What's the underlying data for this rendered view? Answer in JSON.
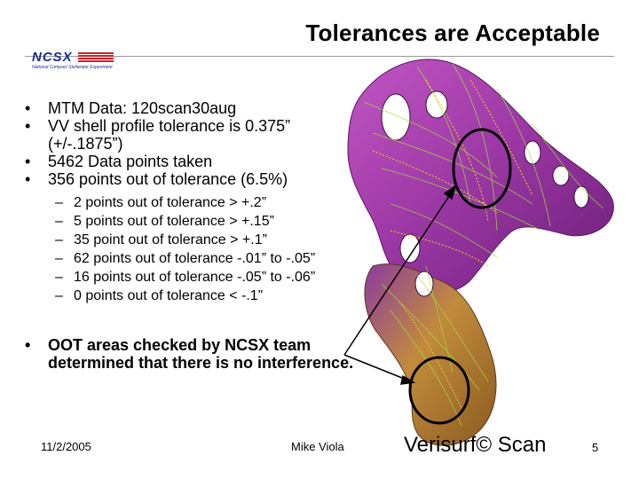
{
  "slide": {
    "title": "Tolerances are Acceptable",
    "logo": {
      "text": "NCSX",
      "subtitle": "National Compact Stellarator Experiment"
    },
    "bullets": [
      "MTM Data: 120scan30aug",
      "VV shell profile tolerance is 0.375” (+/-.1875”)",
      "5462 Data points taken",
      "356 points out of tolerance (6.5%)"
    ],
    "sub_bullets": [
      "2 points out of tolerance > +.2”",
      "5 points out of tolerance > +.15”",
      "35 point out of tolerance > +.1”",
      "62 points out of tolerance  -.01” to -.05”",
      "16 points out of tolerance  -.05” to -.06”",
      "0 points out of tolerance < -.1”"
    ],
    "bold_bullet": "OOT areas checked by NCSX team determined that there is no interference.",
    "bullet_symbol": "•",
    "dash_symbol": "–"
  },
  "footer": {
    "date": "11/2/2005",
    "author": "Mike Viola",
    "brand": "Verisurf© Scan",
    "page": "5"
  },
  "colors": {
    "shell": "#a23ca8",
    "shell_dark": "#6e1f7a",
    "scan_lines": "#9ee23a",
    "scan_points": "#e6d02a",
    "lower_region": "#b78a3a"
  }
}
